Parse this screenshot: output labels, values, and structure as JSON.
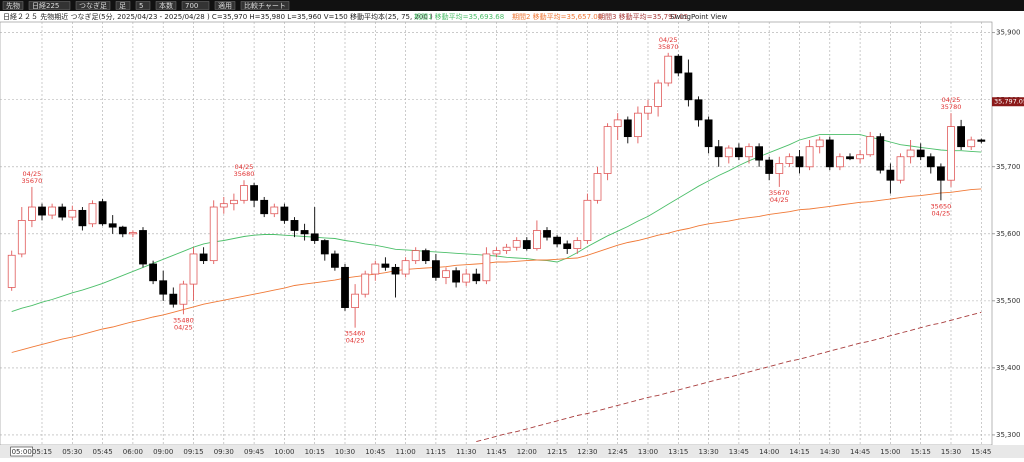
{
  "toolbar": [
    "先物",
    "日経225",
    "つなぎ足",
    "足",
    "5",
    "本数",
    "700",
    "適用",
    "比較チャート"
  ],
  "chart_data": {
    "type": "candlestick",
    "title": "日経２２５ 先物期近 つなぎ足(5分, 2025/04/23 - 2025/04/28 ) C=35,970 H=35,980 L=35,960 V=150 移動平均本(25, 75, 200 )",
    "subtitle": "SwingPoint View",
    "categories": [
      "05:00",
      null,
      null,
      "05:15",
      null,
      null,
      "05:30",
      null,
      null,
      "05:45",
      null,
      null,
      "06:00",
      null,
      null,
      "09:00",
      null,
      null,
      "09:15",
      null,
      null,
      "09:30",
      null,
      null,
      "09:45",
      null,
      null,
      "10:00",
      null,
      null,
      "10:15",
      null,
      null,
      "10:30",
      null,
      null,
      "10:45",
      null,
      null,
      "11:00",
      null,
      null,
      "11:15",
      null,
      null,
      "11:30",
      null,
      null,
      "11:45",
      null,
      null,
      "12:00",
      null,
      null,
      "12:15",
      null,
      null,
      "12:30",
      null,
      null,
      "12:45",
      null,
      null,
      "13:00",
      null,
      null,
      "13:15",
      null,
      null,
      "13:30",
      null,
      null,
      "13:45",
      null,
      null,
      "14:00",
      null,
      null,
      "14:15",
      null,
      null,
      "14:30",
      null,
      null,
      "14:45",
      null,
      null,
      "15:00",
      null,
      null,
      "15:15",
      null,
      null,
      "15:30",
      null,
      null,
      "15:45"
    ],
    "open": [
      35520,
      35570,
      35620,
      35640,
      35628,
      35640,
      35625,
      35635,
      35615,
      35648,
      35615,
      35610,
      35600,
      35605,
      35555,
      35530,
      35510,
      35495,
      35525,
      35570,
      35560,
      35640,
      35645,
      35650,
      35672,
      35650,
      35630,
      35640,
      35620,
      35605,
      35600,
      35590,
      35570,
      35550,
      35490,
      35510,
      35540,
      35555,
      35550,
      35540,
      35560,
      35575,
      35560,
      35535,
      35545,
      35528,
      35540,
      35530,
      35570,
      35575,
      35580,
      35590,
      35578,
      35605,
      35595,
      35585,
      35578,
      35590,
      35650,
      35690,
      35760,
      35770,
      35745,
      35780,
      35790,
      35825,
      35865,
      35840,
      35800,
      35770,
      35730,
      35715,
      35728,
      35715,
      35730,
      35710,
      35690,
      35705,
      35715,
      35700,
      35730,
      35740,
      35700,
      35715,
      35712,
      35718,
      35745,
      35695,
      35680,
      35715,
      35725,
      35715,
      35700,
      35680,
      35760,
      35730,
      35740
    ],
    "high": [
      35575,
      35640,
      35670,
      35645,
      35645,
      35645,
      35642,
      35640,
      35650,
      35652,
      35628,
      35612,
      35605,
      35610,
      35560,
      35545,
      35520,
      35530,
      35580,
      35580,
      35650,
      35655,
      35660,
      35680,
      35676,
      35655,
      35645,
      35645,
      35625,
      35615,
      35640,
      35592,
      35575,
      35555,
      35525,
      35545,
      35560,
      35565,
      35555,
      35565,
      35580,
      35578,
      35570,
      35550,
      35550,
      35548,
      35548,
      35580,
      35580,
      35585,
      35595,
      35595,
      35620,
      35610,
      35598,
      35590,
      35595,
      35660,
      35700,
      35765,
      35780,
      35775,
      35790,
      35800,
      35830,
      35870,
      35868,
      35860,
      35805,
      35775,
      35740,
      35732,
      35735,
      35735,
      35735,
      35715,
      35715,
      35720,
      35725,
      35740,
      35745,
      35745,
      35720,
      35720,
      35725,
      35752,
      35750,
      35705,
      35720,
      35740,
      35735,
      35720,
      35705,
      35780,
      35770,
      35745,
      35742
    ],
    "low": [
      35515,
      35565,
      35610,
      35620,
      35622,
      35620,
      35620,
      35605,
      35610,
      35612,
      35600,
      35595,
      35595,
      35550,
      35525,
      35500,
      35490,
      35480,
      35500,
      35555,
      35555,
      35630,
      35635,
      35645,
      35640,
      35625,
      35625,
      35615,
      35595,
      35590,
      35585,
      35560,
      35545,
      35485,
      35460,
      35505,
      35530,
      35545,
      35505,
      35535,
      35555,
      35555,
      35530,
      35525,
      35520,
      35522,
      35525,
      35525,
      35565,
      35570,
      35575,
      35575,
      35575,
      35590,
      35580,
      35570,
      35570,
      35585,
      35645,
      35680,
      35740,
      35735,
      35735,
      35770,
      35775,
      35820,
      35835,
      35790,
      35760,
      35720,
      35700,
      35705,
      35710,
      35705,
      35700,
      35680,
      35670,
      35700,
      35690,
      35695,
      35720,
      35695,
      35695,
      35710,
      35705,
      35715,
      35690,
      35660,
      35675,
      35705,
      35710,
      35690,
      35650,
      35670,
      35725,
      35725,
      35735
    ],
    "close": [
      35568,
      35620,
      35640,
      35628,
      35640,
      35625,
      35635,
      35612,
      35645,
      35615,
      35610,
      35600,
      35602,
      35555,
      35530,
      35510,
      35495,
      35525,
      35570,
      35560,
      35640,
      35645,
      35650,
      35672,
      35650,
      35630,
      35640,
      35620,
      35605,
      35600,
      35590,
      35570,
      35550,
      35490,
      35510,
      35540,
      35555,
      35550,
      35540,
      35560,
      35575,
      35560,
      35535,
      35545,
      35528,
      35540,
      35530,
      35570,
      35575,
      35580,
      35590,
      35578,
      35605,
      35595,
      35585,
      35578,
      35590,
      35650,
      35690,
      35760,
      35770,
      35745,
      35780,
      35790,
      35825,
      35865,
      35840,
      35800,
      35770,
      35730,
      35715,
      35728,
      35715,
      35730,
      35710,
      35690,
      35705,
      35715,
      35700,
      35730,
      35740,
      35700,
      35715,
      35712,
      35718,
      35745,
      35695,
      35680,
      35715,
      35725,
      35715,
      35700,
      35680,
      35760,
      35730,
      35740,
      35738
    ],
    "up_color": "#e05a5a",
    "down_color": "#000000",
    "series": [
      {
        "name": "期間1 移動平均=35,693.68",
        "color": "#4cbf6a",
        "dash": false,
        "values": [
          35484,
          35489,
          35493,
          35498,
          35502,
          35507,
          35512,
          35516,
          35521,
          35526,
          35532,
          35538,
          35544,
          35550,
          35556,
          35562,
          35568,
          35574,
          35580,
          35585,
          35588,
          35590,
          35593,
          35596,
          35598,
          35599,
          35599,
          35598,
          35597,
          35596,
          35595,
          35594,
          35593,
          35590,
          35588,
          35585,
          35583,
          35580,
          35577,
          35576,
          35575,
          35574,
          35573,
          35572,
          35571,
          35570,
          35569,
          35568,
          35567,
          35565,
          35564,
          35563,
          35561,
          35560,
          35558,
          35564,
          35572,
          35581,
          35589,
          35597,
          35604,
          35611,
          35619,
          35626,
          35635,
          35644,
          35653,
          35662,
          35671,
          35679,
          35687,
          35694,
          35702,
          35709,
          35715,
          35721,
          35727,
          35733,
          35740,
          35744,
          35748,
          35748,
          35748,
          35748,
          35748,
          35744,
          35741,
          35737,
          35733,
          35731,
          35729,
          35727,
          35725,
          35724,
          35724,
          35723,
          35722
        ]
      },
      {
        "name": "期間2 移動平均=35,657.00",
        "color": "#f07a38",
        "dash": false,
        "values": [
          35423,
          35427,
          35431,
          35435,
          35439,
          35443,
          35446,
          35450,
          35454,
          35458,
          35461,
          35465,
          35469,
          35472,
          35476,
          35479,
          35483,
          35487,
          35491,
          35495,
          35498,
          35501,
          35504,
          35507,
          35510,
          35513,
          35516,
          35519,
          35523,
          35525,
          35527,
          35529,
          35531,
          35534,
          35536,
          35538,
          35540,
          35542,
          35545,
          35547,
          35548,
          35549,
          35550,
          35551,
          35553,
          35554,
          35555,
          35556,
          35558,
          35558,
          35559,
          35560,
          35561,
          35561,
          35562,
          35563,
          35564,
          35568,
          35573,
          35578,
          35583,
          35587,
          35590,
          35594,
          35598,
          35601,
          35605,
          35608,
          35612,
          35615,
          35617,
          35619,
          35622,
          35624,
          35626,
          35629,
          35631,
          35633,
          35636,
          35637,
          35639,
          35641,
          35643,
          35645,
          35647,
          35648,
          35650,
          35652,
          35654,
          35656,
          35657,
          35659,
          35661,
          35662,
          35664,
          35666,
          35667
        ]
      },
      {
        "name": "期間3 移動平均=35,797.05",
        "color": "#a83c3c",
        "dash": true,
        "values": [
          null,
          null,
          null,
          null,
          null,
          null,
          null,
          null,
          null,
          null,
          null,
          null,
          null,
          null,
          null,
          null,
          null,
          null,
          null,
          null,
          null,
          null,
          null,
          null,
          null,
          null,
          null,
          null,
          null,
          null,
          null,
          null,
          null,
          null,
          null,
          null,
          null,
          null,
          null,
          null,
          null,
          null,
          null,
          null,
          null,
          null,
          35290,
          35294,
          35298,
          35302,
          35305,
          35309,
          35313,
          35317,
          35321,
          35325,
          35329,
          35332,
          35336,
          35340,
          35344,
          35348,
          35352,
          35356,
          35359,
          35363,
          35367,
          35371,
          35375,
          35379,
          35383,
          35386,
          35390,
          35394,
          35398,
          35402,
          35406,
          35410,
          35413,
          35417,
          35421,
          35425,
          35429,
          35433,
          35437,
          35440,
          35444,
          35448,
          35452,
          35456,
          35460,
          35464,
          35467,
          35471,
          35475,
          35479,
          35483
        ]
      }
    ],
    "annotations": [
      {
        "date": "04/25",
        "price": 35670
      },
      {
        "date": "04/25",
        "price": 35480
      },
      {
        "date": "04/25",
        "price": 35680
      },
      {
        "date": "04/25",
        "price": 35460
      },
      {
        "date": "04/25",
        "price": 35870
      },
      {
        "date": "04/25",
        "price": 35670
      },
      {
        "date": "04/25",
        "price": 35650
      },
      {
        "date": "04/25",
        "price": 35780
      }
    ],
    "price_tag": {
      "value": 35797.05,
      "label": "35,797.05"
    },
    "ylim": [
      35285,
      35916
    ],
    "yticks": [
      {
        "value": 35300,
        "label": "35,300"
      },
      {
        "value": 35400,
        "label": "35,400"
      },
      {
        "value": 35500,
        "label": "35,500"
      },
      {
        "value": 35600,
        "label": "35,600"
      },
      {
        "value": 35700,
        "label": "35,700"
      },
      {
        "value": 35800,
        "label": "35,800"
      },
      {
        "value": 35900,
        "label": "35,900"
      }
    ],
    "grid": true
  }
}
